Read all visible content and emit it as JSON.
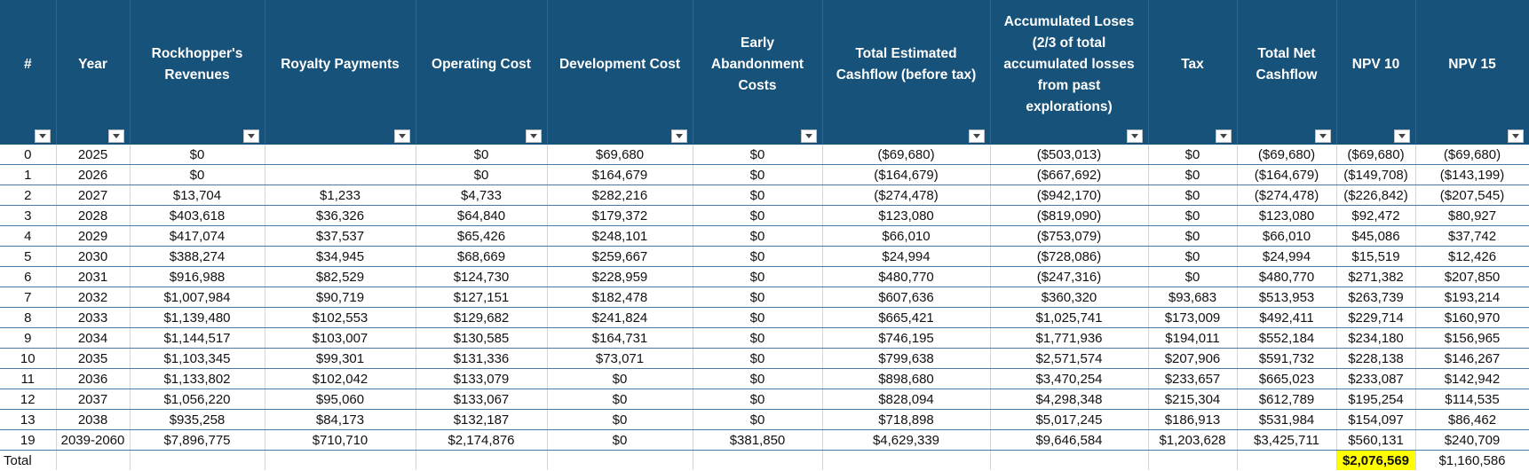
{
  "columns": [
    "#",
    "Year",
    "Rockhopper's Revenues",
    "Royalty Payments",
    "Operating Cost",
    "Development Cost",
    "Early Abandonment Costs",
    "Total Estimated Cashflow (before tax)",
    "Accumulated Loses (2/3 of total accumulated losses from past explorations)",
    "Tax",
    "Total Net Cashflow",
    "NPV 10",
    "NPV 15"
  ],
  "rows": [
    [
      "0",
      "2025",
      "$0",
      "",
      "$0",
      "$69,680",
      "$0",
      "($69,680)",
      "($503,013)",
      "$0",
      "($69,680)",
      "($69,680)",
      "($69,680)"
    ],
    [
      "1",
      "2026",
      "$0",
      "",
      "$0",
      "$164,679",
      "$0",
      "($164,679)",
      "($667,692)",
      "$0",
      "($164,679)",
      "($149,708)",
      "($143,199)"
    ],
    [
      "2",
      "2027",
      "$13,704",
      "$1,233",
      "$4,733",
      "$282,216",
      "$0",
      "($274,478)",
      "($942,170)",
      "$0",
      "($274,478)",
      "($226,842)",
      "($207,545)"
    ],
    [
      "3",
      "2028",
      "$403,618",
      "$36,326",
      "$64,840",
      "$179,372",
      "$0",
      "$123,080",
      "($819,090)",
      "$0",
      "$123,080",
      "$92,472",
      "$80,927"
    ],
    [
      "4",
      "2029",
      "$417,074",
      "$37,537",
      "$65,426",
      "$248,101",
      "$0",
      "$66,010",
      "($753,079)",
      "$0",
      "$66,010",
      "$45,086",
      "$37,742"
    ],
    [
      "5",
      "2030",
      "$388,274",
      "$34,945",
      "$68,669",
      "$259,667",
      "$0",
      "$24,994",
      "($728,086)",
      "$0",
      "$24,994",
      "$15,519",
      "$12,426"
    ],
    [
      "6",
      "2031",
      "$916,988",
      "$82,529",
      "$124,730",
      "$228,959",
      "$0",
      "$480,770",
      "($247,316)",
      "$0",
      "$480,770",
      "$271,382",
      "$207,850"
    ],
    [
      "7",
      "2032",
      "$1,007,984",
      "$90,719",
      "$127,151",
      "$182,478",
      "$0",
      "$607,636",
      "$360,320",
      "$93,683",
      "$513,953",
      "$263,739",
      "$193,214"
    ],
    [
      "8",
      "2033",
      "$1,139,480",
      "$102,553",
      "$129,682",
      "$241,824",
      "$0",
      "$665,421",
      "$1,025,741",
      "$173,009",
      "$492,411",
      "$229,714",
      "$160,970"
    ],
    [
      "9",
      "2034",
      "$1,144,517",
      "$103,007",
      "$130,585",
      "$164,731",
      "$0",
      "$746,195",
      "$1,771,936",
      "$194,011",
      "$552,184",
      "$234,180",
      "$156,965"
    ],
    [
      "10",
      "2035",
      "$1,103,345",
      "$99,301",
      "$131,336",
      "$73,071",
      "$0",
      "$799,638",
      "$2,571,574",
      "$207,906",
      "$591,732",
      "$228,138",
      "$146,267"
    ],
    [
      "11",
      "2036",
      "$1,133,802",
      "$102,042",
      "$133,079",
      "$0",
      "$0",
      "$898,680",
      "$3,470,254",
      "$233,657",
      "$665,023",
      "$233,087",
      "$142,942"
    ],
    [
      "12",
      "2037",
      "$1,056,220",
      "$95,060",
      "$133,067",
      "$0",
      "$0",
      "$828,094",
      "$4,298,348",
      "$215,304",
      "$612,789",
      "$195,254",
      "$114,535"
    ],
    [
      "13",
      "2038",
      "$935,258",
      "$84,173",
      "$132,187",
      "$0",
      "$0",
      "$718,898",
      "$5,017,245",
      "$186,913",
      "$531,984",
      "$154,097",
      "$86,462"
    ],
    [
      "19",
      "2039-2060",
      "$7,896,775",
      "$710,710",
      "$2,174,876",
      "$0",
      "$381,850",
      "$4,629,339",
      "$9,646,584",
      "$1,203,628",
      "$3,425,711",
      "$560,131",
      "$240,709"
    ]
  ],
  "total": {
    "label": "Total",
    "npv10": "$2,076,569",
    "npv15": "$1,160,586"
  },
  "colors": {
    "header_bg": "#17527a",
    "header_text": "#ffffff",
    "row_border": "#4a7aa3",
    "highlight": "#ffff00"
  },
  "icons": {
    "filter": "filter-dropdown-icon"
  }
}
